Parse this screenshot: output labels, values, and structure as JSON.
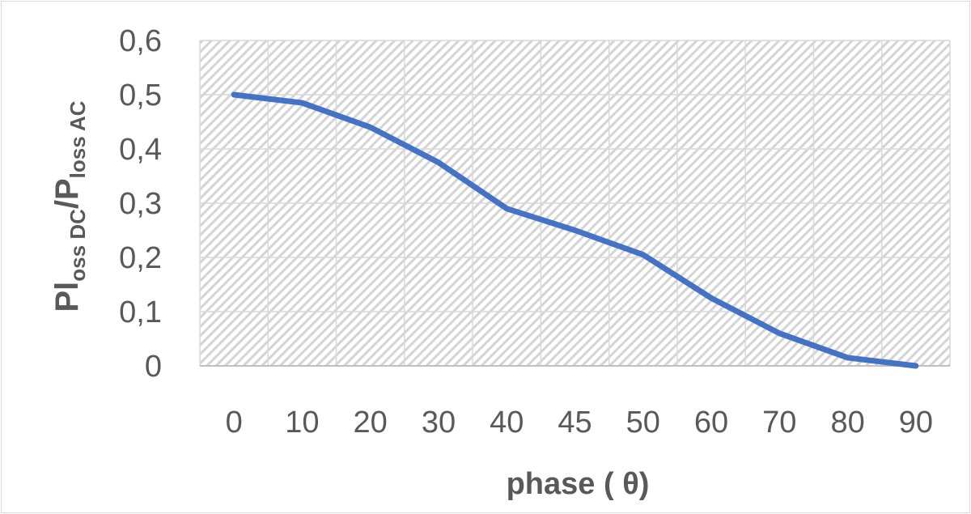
{
  "chart_data": {
    "type": "line",
    "title": "",
    "xlabel": "phase ( θ)",
    "ylabel": {
      "p1": "Pl",
      "sub1": "oss DC",
      "p2": "/P",
      "sub2": "loss AC"
    },
    "categories": [
      "0",
      "10",
      "20",
      "30",
      "40",
      "45",
      "50",
      "60",
      "70",
      "80",
      "90"
    ],
    "series": [
      {
        "values": [
          0.5,
          0.485,
          0.44,
          0.375,
          0.29,
          0.25,
          0.205,
          0.125,
          0.06,
          0.015,
          0.0
        ],
        "color": "#4472c4"
      }
    ],
    "ylim": [
      0,
      0.6
    ],
    "yticks": [
      "0",
      "0,1",
      "0,2",
      "0,3",
      "0,4",
      "0,5",
      "0,6"
    ],
    "grid": true,
    "legend": "none",
    "plot_fill": "hatched"
  }
}
